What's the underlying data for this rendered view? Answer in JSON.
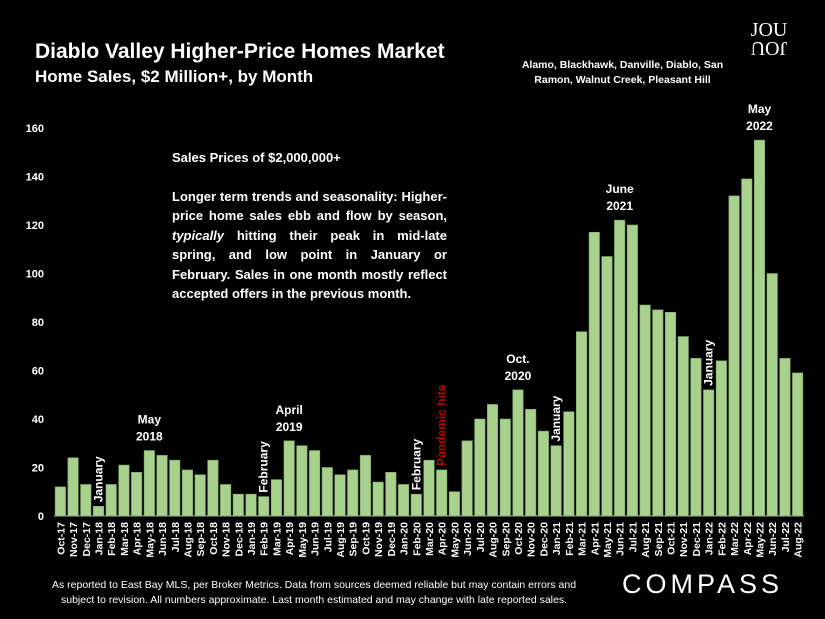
{
  "header": {
    "title": "Diablo Valley Higher-Price Homes Market",
    "subtitle": "Home Sales, $2 Million+, by Month",
    "region": "Alamo, Blackhawk, Danville, Diablo, San Ramon, Walnut Creek, Pleasant Hill",
    "logo_text_top": "JOU",
    "logo_text_bottom": "JOU"
  },
  "description": {
    "heading": "Sales Prices of $2,000,000+",
    "body_before_italic": "Longer term trends and seasonality: Higher-price home sales ebb and flow by season, ",
    "body_italic": "typically",
    "body_after_italic": " hitting their peak in mid-late spring, and low point in January or February. Sales in one month mostly reflect accepted offers in the previous month."
  },
  "footer": {
    "note": "As reported to East Bay MLS, per Broker Metrics. Data from sources deemed reliable but may contain errors and subject to revision. All numbers approximate. Last month estimated and may change with late reported sales.",
    "brand": "COMPASS"
  },
  "colors": {
    "bar": "#a9d18e",
    "bar_stroke": "#7fa868",
    "axis_text": "#ffffff",
    "pandemic_label": "#c00000"
  },
  "chart_data": {
    "type": "bar",
    "title": "Home Sales, $2 Million+, by Month",
    "ylim": [
      0,
      160
    ],
    "yticks": [
      0,
      20,
      40,
      60,
      80,
      100,
      120,
      140,
      160
    ],
    "grid": false,
    "categories": [
      "Oct-17",
      "Nov-17",
      "Dec-17",
      "Jan-18",
      "Feb-18",
      "Mar-18",
      "Apr-18",
      "May-18",
      "Jun-18",
      "Jul-18",
      "Aug-18",
      "Sep-18",
      "Oct-18",
      "Nov-18",
      "Dec-18",
      "Jan-19",
      "Feb-19",
      "Mar-19",
      "Apr-19",
      "May-19",
      "Jun-19",
      "Jul-19",
      "Aug-19",
      "Sep-19",
      "Oct-19",
      "Nov-19",
      "Dec-19",
      "Jan-20",
      "Feb-20",
      "Mar-20",
      "Apr-20",
      "May-20",
      "Jun-20",
      "Jul-20",
      "Aug-20",
      "Sep-20",
      "Oct-20",
      "Nov-20",
      "Dec-20",
      "Jan-21",
      "Feb-21",
      "Mar-21",
      "Apr-21",
      "May-21",
      "Jun-21",
      "Jul-21",
      "Aug-21",
      "Sep-21",
      "Oct-21",
      "Nov-21",
      "Dec-21",
      "Jan-22",
      "Feb-22",
      "Mar-22",
      "Apr-22",
      "May-22",
      "Jun-22",
      "Jul-22",
      "Aug-22"
    ],
    "values": [
      12,
      24,
      13,
      4,
      13,
      21,
      18,
      27,
      25,
      23,
      19,
      17,
      23,
      13,
      9,
      9,
      8,
      15,
      31,
      29,
      27,
      20,
      17,
      19,
      25,
      14,
      18,
      13,
      9,
      23,
      19,
      10,
      31,
      40,
      46,
      40,
      52,
      44,
      35,
      29,
      43,
      76,
      117,
      107,
      122,
      120,
      87,
      85,
      84,
      74,
      65,
      52,
      64,
      132,
      139,
      155,
      100,
      65,
      59
    ],
    "annotations": [
      {
        "category": "May-18",
        "text": [
          "May",
          "2018"
        ],
        "orientation": "horizontal"
      },
      {
        "category": "Apr-19",
        "text": [
          "April",
          "2019"
        ],
        "orientation": "horizontal"
      },
      {
        "category": "Oct-20",
        "text": [
          "Oct.",
          "2020"
        ],
        "orientation": "horizontal"
      },
      {
        "category": "Jun-21",
        "text": [
          "June",
          "2021"
        ],
        "orientation": "horizontal"
      },
      {
        "category": "May-22",
        "text": [
          "May",
          "2022"
        ],
        "orientation": "horizontal"
      },
      {
        "category": "Jan-18",
        "text": [
          "January"
        ],
        "orientation": "vertical"
      },
      {
        "category": "Feb-19",
        "text": [
          "February"
        ],
        "orientation": "vertical"
      },
      {
        "category": "Feb-20",
        "text": [
          "February"
        ],
        "orientation": "vertical"
      },
      {
        "category": "Apr-20",
        "text": [
          "Pandemic hits"
        ],
        "orientation": "vertical",
        "color": "#c00000"
      },
      {
        "category": "Jan-21",
        "text": [
          "January"
        ],
        "orientation": "vertical"
      },
      {
        "category": "Jan-22",
        "text": [
          "January"
        ],
        "orientation": "vertical"
      }
    ]
  }
}
